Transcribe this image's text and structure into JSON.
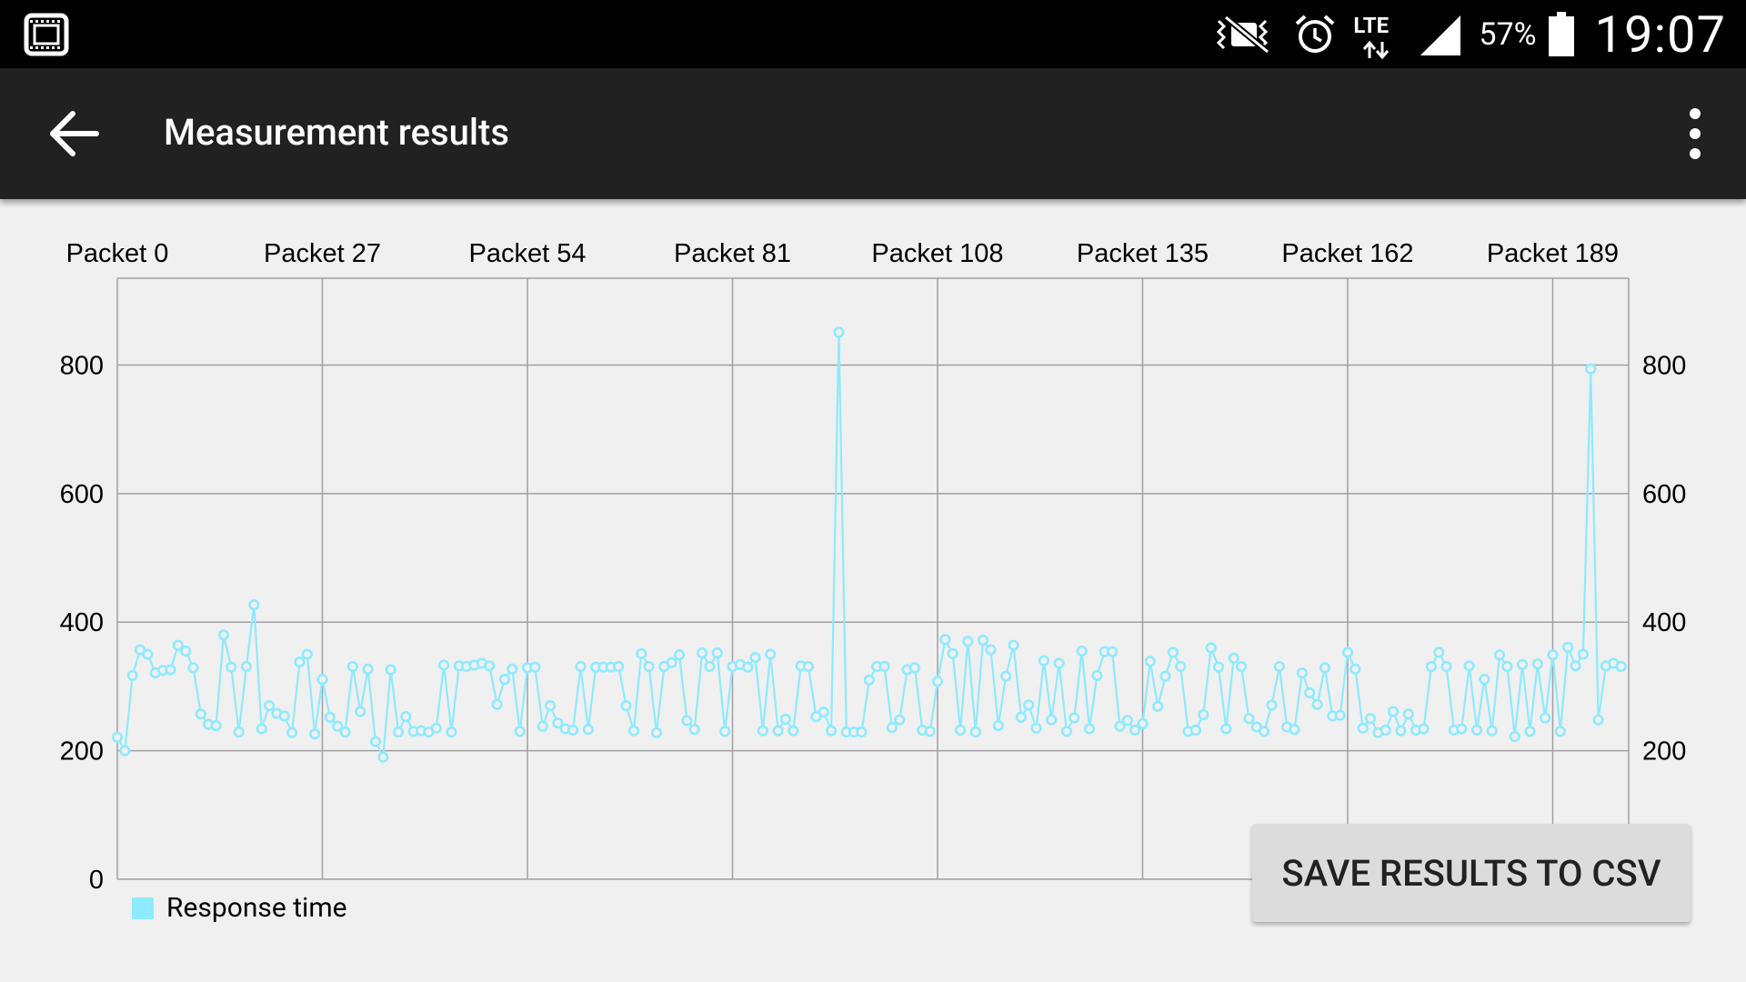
{
  "status_bar": {
    "battery_percent": "57%",
    "network": "LTE",
    "time": "19:07",
    "icons": [
      "screenshot-icon",
      "mute-icon",
      "alarm-icon",
      "lte-icon",
      "signal-icon",
      "battery-icon"
    ]
  },
  "app_bar": {
    "title": "Measurement results",
    "back_icon": "arrow-back-icon",
    "menu_icon": "more-vert-icon"
  },
  "actions": {
    "save_label": "SAVE RESULTS TO CSV"
  },
  "colors": {
    "series": "#8eeaff",
    "app_bar": "#212121",
    "status_bar": "#000000",
    "background": "#f0f0f0",
    "grid": "#a0a0a0"
  },
  "chart_data": {
    "type": "line",
    "xlabel": "",
    "ylabel": "",
    "title": "",
    "x_tick_labels": [
      "Packet 0",
      "Packet 27",
      "Packet 54",
      "Packet 81",
      "Packet 108",
      "Packet 135",
      "Packet 162",
      "Packet 189"
    ],
    "x_ticks": [
      0,
      27,
      54,
      81,
      108,
      135,
      162,
      189
    ],
    "xlim": [
      0,
      199
    ],
    "y_ticks": [
      0,
      200,
      400,
      600,
      800
    ],
    "y_tick_labels": [
      "0",
      "200",
      "400",
      "600",
      "800"
    ],
    "ylim": [
      0,
      935
    ],
    "grid": true,
    "legend_position": "bottom-left",
    "series": [
      {
        "name": "Response time",
        "color": "#8eeaff",
        "values": [
          221,
          200,
          317,
          357,
          350,
          321,
          325,
          326,
          364,
          355,
          329,
          257,
          241,
          239,
          380,
          330,
          229,
          331,
          427,
          234,
          270,
          258,
          254,
          228,
          338,
          350,
          226,
          311,
          252,
          238,
          229,
          331,
          261,
          327,
          214,
          190,
          326,
          229,
          253,
          230,
          231,
          229,
          235,
          333,
          229,
          332,
          331,
          333,
          336,
          332,
          272,
          311,
          327,
          230,
          329,
          330,
          238,
          270,
          243,
          234,
          232,
          331,
          233,
          330,
          330,
          330,
          331,
          270,
          231,
          351,
          331,
          228,
          331,
          337,
          349,
          247,
          233,
          352,
          331,
          352,
          230,
          331,
          334,
          330,
          345,
          231,
          350,
          231,
          249,
          231,
          332,
          331,
          253,
          260,
          231,
          851,
          229,
          229,
          229,
          310,
          331,
          331,
          236,
          248,
          326,
          329,
          232,
          230,
          308,
          373,
          351,
          232,
          370,
          229,
          372,
          357,
          239,
          316,
          364,
          252,
          271,
          235,
          340,
          248,
          336,
          230,
          251,
          355,
          234,
          317,
          354,
          354,
          238,
          247,
          232,
          242,
          339,
          269,
          316,
          353,
          331,
          230,
          232,
          256,
          360,
          330,
          234,
          344,
          331,
          250,
          237,
          230,
          271,
          331,
          237,
          233,
          321,
          290,
          272,
          329,
          254,
          255,
          353,
          327,
          235,
          250,
          228,
          232,
          261,
          231,
          257,
          232,
          234,
          331,
          353,
          331,
          232,
          234,
          332,
          232,
          311,
          231,
          349,
          331,
          222,
          334,
          230,
          335,
          251,
          349,
          230,
          361,
          332,
          350,
          794,
          248,
          332,
          336,
          331
        ]
      }
    ]
  }
}
